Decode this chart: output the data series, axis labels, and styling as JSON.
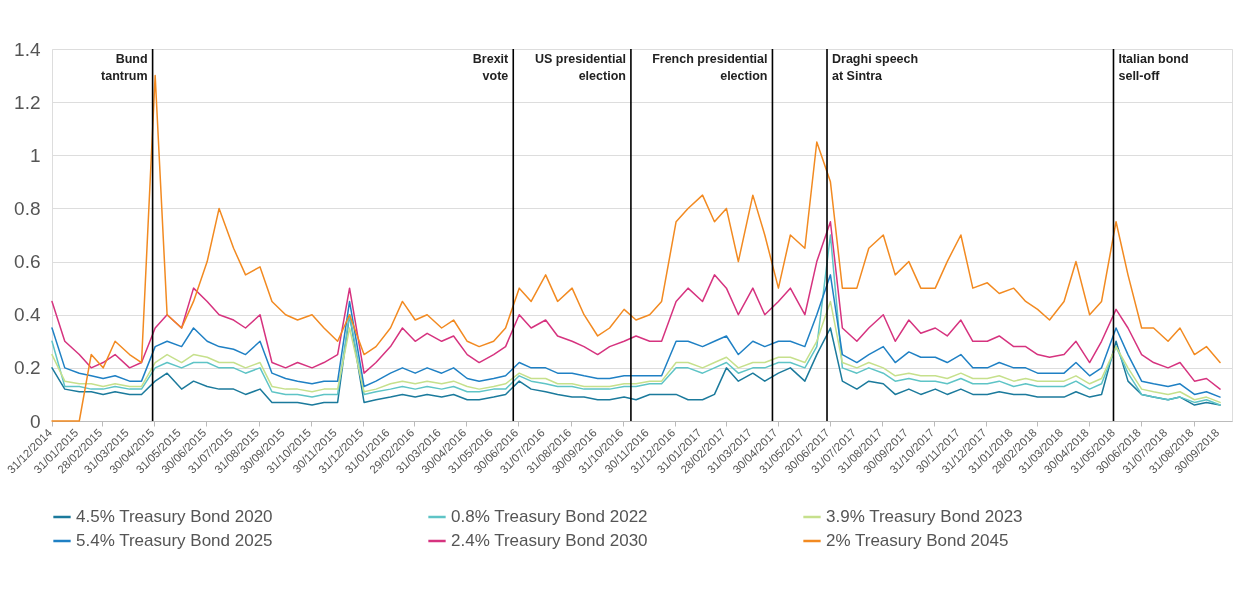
{
  "chart_data": {
    "type": "line",
    "x": [
      "2014-12-31",
      "2015-01-15",
      "2015-02-01",
      "2015-02-15",
      "2015-03-01",
      "2015-03-15",
      "2015-04-01",
      "2015-04-15",
      "2015-05-01",
      "2015-05-15",
      "2015-06-01",
      "2015-06-15",
      "2015-07-01",
      "2015-07-15",
      "2015-08-01",
      "2015-08-15",
      "2015-09-01",
      "2015-09-15",
      "2015-10-01",
      "2015-10-15",
      "2015-11-01",
      "2015-11-15",
      "2015-12-01",
      "2015-12-15",
      "2016-01-01",
      "2016-01-15",
      "2016-02-01",
      "2016-02-15",
      "2016-03-01",
      "2016-03-15",
      "2016-04-01",
      "2016-04-15",
      "2016-05-01",
      "2016-05-15",
      "2016-06-01",
      "2016-06-15",
      "2016-07-01",
      "2016-07-15",
      "2016-08-01",
      "2016-08-15",
      "2016-09-01",
      "2016-09-15",
      "2016-10-01",
      "2016-10-15",
      "2016-11-01",
      "2016-11-15",
      "2016-12-01",
      "2016-12-15",
      "2017-01-01",
      "2017-01-15",
      "2017-02-01",
      "2017-02-15",
      "2017-03-01",
      "2017-03-15",
      "2017-04-01",
      "2017-04-15",
      "2017-05-01",
      "2017-05-15",
      "2017-06-01",
      "2017-06-15",
      "2017-07-01",
      "2017-07-15",
      "2017-08-01",
      "2017-08-15",
      "2017-09-01",
      "2017-09-15",
      "2017-10-01",
      "2017-10-15",
      "2017-11-01",
      "2017-11-15",
      "2017-12-01",
      "2017-12-15",
      "2018-01-01",
      "2018-01-15",
      "2018-02-01",
      "2018-02-15",
      "2018-03-01",
      "2018-03-15",
      "2018-04-01",
      "2018-04-15",
      "2018-05-01",
      "2018-05-15",
      "2018-06-01",
      "2018-06-15",
      "2018-07-01",
      "2018-07-15",
      "2018-08-01",
      "2018-08-15",
      "2018-09-01",
      "2018-09-15",
      "2018-10-01"
    ],
    "series": [
      {
        "name": "4.5% Treasury Bond 2020",
        "color": "#1b7a9c",
        "values": [
          0.2,
          0.12,
          0.11,
          0.11,
          0.1,
          0.11,
          0.1,
          0.1,
          0.15,
          0.18,
          0.12,
          0.15,
          0.13,
          0.12,
          0.12,
          0.1,
          0.12,
          0.07,
          0.07,
          0.07,
          0.06,
          0.07,
          0.07,
          0.4,
          0.07,
          0.08,
          0.09,
          0.1,
          0.09,
          0.1,
          0.09,
          0.1,
          0.08,
          0.08,
          0.09,
          0.1,
          0.15,
          0.12,
          0.11,
          0.1,
          0.09,
          0.09,
          0.08,
          0.08,
          0.09,
          0.08,
          0.1,
          0.1,
          0.1,
          0.08,
          0.08,
          0.1,
          0.2,
          0.15,
          0.18,
          0.15,
          0.18,
          0.2,
          0.15,
          0.25,
          0.35,
          0.15,
          0.12,
          0.15,
          0.14,
          0.1,
          0.12,
          0.1,
          0.12,
          0.1,
          0.12,
          0.1,
          0.1,
          0.11,
          0.1,
          0.1,
          0.09,
          0.09,
          0.09,
          0.11,
          0.09,
          0.1,
          0.3,
          0.15,
          0.1,
          0.09,
          0.08,
          0.09,
          0.06,
          0.07,
          0.06
        ]
      },
      {
        "name": "0.8% Treasury Bond 2022",
        "color": "#5ec4c6",
        "values": [
          0.3,
          0.13,
          0.13,
          0.12,
          0.12,
          0.13,
          0.12,
          0.12,
          0.2,
          0.22,
          0.2,
          0.22,
          0.22,
          0.2,
          0.2,
          0.18,
          0.2,
          0.11,
          0.1,
          0.1,
          0.09,
          0.1,
          0.1,
          0.4,
          0.1,
          0.11,
          0.12,
          0.13,
          0.12,
          0.13,
          0.12,
          0.13,
          0.11,
          0.11,
          0.12,
          0.12,
          0.17,
          0.15,
          0.14,
          0.13,
          0.13,
          0.12,
          0.12,
          0.12,
          0.13,
          0.13,
          0.14,
          0.14,
          0.2,
          0.2,
          0.18,
          0.2,
          0.22,
          0.18,
          0.2,
          0.2,
          0.22,
          0.22,
          0.2,
          0.28,
          0.7,
          0.2,
          0.18,
          0.2,
          0.18,
          0.15,
          0.16,
          0.15,
          0.15,
          0.14,
          0.16,
          0.14,
          0.14,
          0.15,
          0.13,
          0.14,
          0.13,
          0.13,
          0.13,
          0.15,
          0.12,
          0.14,
          0.28,
          0.18,
          0.1,
          0.09,
          0.08,
          0.09,
          0.07,
          0.08,
          0.06
        ]
      },
      {
        "name": "3.9% Treasury Bond 2023",
        "color": "#c6e08c",
        "values": [
          0.25,
          0.15,
          0.14,
          0.14,
          0.13,
          0.14,
          0.13,
          0.13,
          0.22,
          0.25,
          0.22,
          0.25,
          0.24,
          0.22,
          0.22,
          0.2,
          0.22,
          0.13,
          0.12,
          0.12,
          0.11,
          0.12,
          0.12,
          0.35,
          0.11,
          0.12,
          0.14,
          0.15,
          0.14,
          0.15,
          0.14,
          0.15,
          0.13,
          0.12,
          0.13,
          0.14,
          0.18,
          0.16,
          0.16,
          0.14,
          0.14,
          0.13,
          0.13,
          0.13,
          0.14,
          0.14,
          0.15,
          0.15,
          0.22,
          0.22,
          0.2,
          0.22,
          0.24,
          0.2,
          0.22,
          0.22,
          0.24,
          0.24,
          0.22,
          0.3,
          0.45,
          0.22,
          0.2,
          0.22,
          0.2,
          0.17,
          0.18,
          0.17,
          0.17,
          0.16,
          0.18,
          0.16,
          0.16,
          0.17,
          0.15,
          0.16,
          0.15,
          0.15,
          0.15,
          0.17,
          0.14,
          0.16,
          0.28,
          0.2,
          0.12,
          0.11,
          0.1,
          0.11,
          0.08,
          0.09,
          0.07
        ]
      },
      {
        "name": "5.4% Treasury Bond 2025",
        "color": "#1f80c4",
        "values": [
          0.35,
          0.2,
          0.18,
          0.17,
          0.16,
          0.17,
          0.15,
          0.15,
          0.28,
          0.3,
          0.28,
          0.35,
          0.3,
          0.28,
          0.27,
          0.25,
          0.3,
          0.18,
          0.16,
          0.15,
          0.14,
          0.15,
          0.15,
          0.45,
          0.13,
          0.15,
          0.18,
          0.2,
          0.18,
          0.2,
          0.18,
          0.2,
          0.16,
          0.15,
          0.16,
          0.17,
          0.22,
          0.2,
          0.2,
          0.18,
          0.18,
          0.17,
          0.16,
          0.16,
          0.17,
          0.17,
          0.17,
          0.17,
          0.3,
          0.3,
          0.28,
          0.3,
          0.32,
          0.25,
          0.3,
          0.28,
          0.3,
          0.3,
          0.28,
          0.4,
          0.55,
          0.25,
          0.22,
          0.25,
          0.28,
          0.22,
          0.26,
          0.24,
          0.24,
          0.22,
          0.25,
          0.2,
          0.2,
          0.22,
          0.2,
          0.2,
          0.18,
          0.18,
          0.18,
          0.22,
          0.17,
          0.2,
          0.35,
          0.25,
          0.15,
          0.14,
          0.13,
          0.14,
          0.1,
          0.11,
          0.09
        ]
      },
      {
        "name": "2.4% Treasury Bond 2030",
        "color": "#d6337f",
        "values": [
          0.45,
          0.3,
          0.25,
          0.2,
          0.22,
          0.25,
          0.2,
          0.22,
          0.35,
          0.4,
          0.35,
          0.5,
          0.45,
          0.4,
          0.38,
          0.35,
          0.4,
          0.22,
          0.2,
          0.22,
          0.2,
          0.22,
          0.25,
          0.5,
          0.18,
          0.22,
          0.28,
          0.35,
          0.3,
          0.33,
          0.3,
          0.32,
          0.25,
          0.22,
          0.25,
          0.28,
          0.4,
          0.35,
          0.38,
          0.32,
          0.3,
          0.28,
          0.25,
          0.28,
          0.3,
          0.32,
          0.3,
          0.3,
          0.45,
          0.5,
          0.45,
          0.55,
          0.5,
          0.4,
          0.5,
          0.4,
          0.45,
          0.5,
          0.4,
          0.6,
          0.75,
          0.35,
          0.3,
          0.35,
          0.4,
          0.3,
          0.38,
          0.33,
          0.35,
          0.32,
          0.38,
          0.3,
          0.3,
          0.32,
          0.28,
          0.28,
          0.25,
          0.24,
          0.25,
          0.3,
          0.22,
          0.3,
          0.42,
          0.35,
          0.25,
          0.22,
          0.2,
          0.22,
          0.15,
          0.16,
          0.12
        ]
      },
      {
        "name": "2% Treasury Bond 2045",
        "color": "#f28a21",
        "values": [
          0,
          0,
          0,
          0.25,
          0.2,
          0.3,
          0.25,
          0.22,
          1.3,
          0.4,
          0.35,
          0.45,
          0.6,
          0.8,
          0.65,
          0.55,
          0.58,
          0.45,
          0.4,
          0.38,
          0.4,
          0.35,
          0.3,
          0.4,
          0.25,
          0.28,
          0.35,
          0.45,
          0.38,
          0.4,
          0.35,
          0.38,
          0.3,
          0.28,
          0.3,
          0.35,
          0.5,
          0.45,
          0.55,
          0.45,
          0.5,
          0.4,
          0.32,
          0.35,
          0.42,
          0.38,
          0.4,
          0.45,
          0.75,
          0.8,
          0.85,
          0.75,
          0.8,
          0.6,
          0.85,
          0.7,
          0.5,
          0.7,
          0.65,
          1.05,
          0.9,
          0.5,
          0.5,
          0.65,
          0.7,
          0.55,
          0.6,
          0.5,
          0.5,
          0.6,
          0.7,
          0.5,
          0.52,
          0.48,
          0.5,
          0.45,
          0.42,
          0.38,
          0.45,
          0.6,
          0.4,
          0.45,
          0.75,
          0.55,
          0.35,
          0.35,
          0.3,
          0.35,
          0.25,
          0.28,
          0.22
        ]
      }
    ],
    "xlim": [
      "2014-12-31",
      "2018-10-15"
    ],
    "xticks": [
      {
        "value": "2014-12-31",
        "label": "31/12/2014"
      },
      {
        "value": "2015-01-31",
        "label": "31/01/2015"
      },
      {
        "value": "2015-02-28",
        "label": "28/02/2015"
      },
      {
        "value": "2015-03-31",
        "label": "31/03/2015"
      },
      {
        "value": "2015-04-30",
        "label": "30/04/2015"
      },
      {
        "value": "2015-05-31",
        "label": "31/05/2015"
      },
      {
        "value": "2015-06-30",
        "label": "30/06/2015"
      },
      {
        "value": "2015-07-31",
        "label": "31/07/2015"
      },
      {
        "value": "2015-08-31",
        "label": "31/08/2015"
      },
      {
        "value": "2015-09-30",
        "label": "30/09/2015"
      },
      {
        "value": "2015-10-31",
        "label": "31/10/2015"
      },
      {
        "value": "2015-11-30",
        "label": "30/11/2015"
      },
      {
        "value": "2015-12-31",
        "label": "31/12/2015"
      },
      {
        "value": "2016-01-31",
        "label": "31/01/2016"
      },
      {
        "value": "2016-02-29",
        "label": "29/02/2016"
      },
      {
        "value": "2016-03-31",
        "label": "31/03/2016"
      },
      {
        "value": "2016-04-30",
        "label": "30/04/2016"
      },
      {
        "value": "2016-05-31",
        "label": "31/05/2016"
      },
      {
        "value": "2016-06-30",
        "label": "30/06/2016"
      },
      {
        "value": "2016-07-31",
        "label": "31/07/2016"
      },
      {
        "value": "2016-08-31",
        "label": "31/08/2016"
      },
      {
        "value": "2016-09-30",
        "label": "30/09/2016"
      },
      {
        "value": "2016-10-31",
        "label": "31/10/2016"
      },
      {
        "value": "2016-11-30",
        "label": "30/11/2016"
      },
      {
        "value": "2016-12-31",
        "label": "31/12/2016"
      },
      {
        "value": "2017-01-31",
        "label": "31/01/2017"
      },
      {
        "value": "2017-02-28",
        "label": "28/02/2017"
      },
      {
        "value": "2017-03-31",
        "label": "31/03/2017"
      },
      {
        "value": "2017-04-30",
        "label": "30/04/2017"
      },
      {
        "value": "2017-05-31",
        "label": "31/05/2017"
      },
      {
        "value": "2017-06-30",
        "label": "30/06/2017"
      },
      {
        "value": "2017-07-31",
        "label": "31/07/2017"
      },
      {
        "value": "2017-08-31",
        "label": "31/08/2017"
      },
      {
        "value": "2017-09-30",
        "label": "30/09/2017"
      },
      {
        "value": "2017-10-31",
        "label": "31/10/2017"
      },
      {
        "value": "2017-11-30",
        "label": "30/11/2017"
      },
      {
        "value": "2017-12-31",
        "label": "31/12/2017"
      },
      {
        "value": "2018-01-31",
        "label": "31/01/2018"
      },
      {
        "value": "2018-02-28",
        "label": "28/02/2018"
      },
      {
        "value": "2018-03-31",
        "label": "31/03/2018"
      },
      {
        "value": "2018-04-30",
        "label": "30/04/2018"
      },
      {
        "value": "2018-05-31",
        "label": "31/05/2018"
      },
      {
        "value": "2018-06-30",
        "label": "30/06/2018"
      },
      {
        "value": "2018-07-31",
        "label": "31/07/2018"
      },
      {
        "value": "2018-08-31",
        "label": "31/08/2018"
      },
      {
        "value": "2018-09-30",
        "label": "30/09/2018"
      }
    ],
    "ylim": [
      0,
      1.4
    ],
    "yticks": [
      0,
      0.2,
      0.4,
      0.6,
      0.8,
      1,
      1.2,
      1.4
    ],
    "grid": "y",
    "legend": "bottom",
    "ref_lines": [
      {
        "axis": "x",
        "value": "2015-04-28",
        "label": "Bund\ntantrum",
        "color": "#000000"
      },
      {
        "axis": "x",
        "value": "2016-06-24",
        "label": "Brexit\nvote",
        "color": "#000000"
      },
      {
        "axis": "x",
        "value": "2016-11-09",
        "label": "US presidential\nelection",
        "color": "#000000"
      },
      {
        "axis": "x",
        "value": "2017-04-24",
        "label": "French presidential\nelection",
        "color": "#000000"
      },
      {
        "axis": "x",
        "value": "2017-06-27",
        "label": "Draghi speech\nat Sintra",
        "color": "#000000"
      },
      {
        "axis": "x",
        "value": "2018-05-29",
        "label": "Italian bond\nsell-off",
        "color": "#000000"
      }
    ]
  }
}
